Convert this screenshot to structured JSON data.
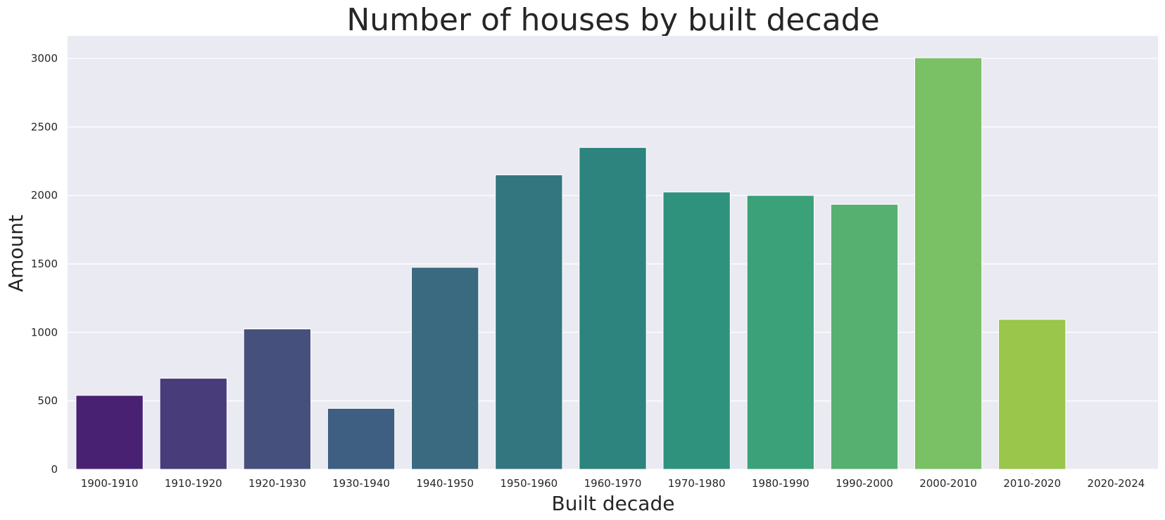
{
  "chart_data": {
    "type": "bar",
    "title": "Number of houses by built decade",
    "xlabel": "Built decade",
    "ylabel": "Amount",
    "categories": [
      "1900-1910",
      "1910-1920",
      "1920-1930",
      "1930-1940",
      "1940-1950",
      "1950-1960",
      "1960-1970",
      "1970-1980",
      "1980-1990",
      "1990-2000",
      "2000-2010",
      "2010-2020",
      "2020-2024"
    ],
    "values": [
      540,
      665,
      1025,
      445,
      1475,
      2150,
      2350,
      2025,
      2000,
      1935,
      3005,
      1095,
      0
    ],
    "ylim": [
      0,
      3165
    ],
    "yticks": [
      0,
      500,
      1000,
      1500,
      2000,
      2500,
      3000
    ],
    "grid": true,
    "colors": [
      "#482173",
      "#493c7a",
      "#46507c",
      "#3e5e82",
      "#3a6a80",
      "#347680",
      "#2d837d",
      "#2f927d",
      "#3ba178",
      "#56b070",
      "#7ac064",
      "#99c64b",
      "#c4d81f"
    ],
    "background": "#eaeaf2"
  }
}
